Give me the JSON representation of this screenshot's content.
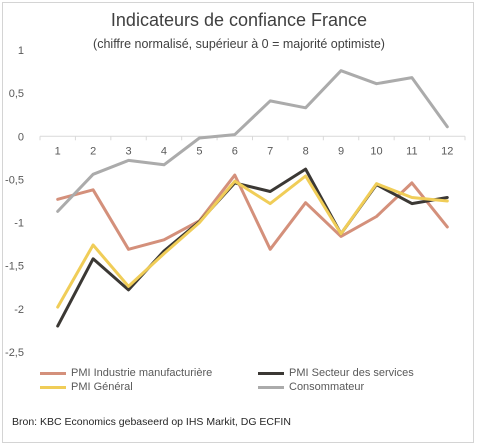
{
  "chart_data": {
    "type": "line",
    "title": "Indicateurs de confiance France",
    "subtitle": "(chiffre normalisé, supérieur à 0 = majorité optimiste)",
    "x": [
      1,
      2,
      3,
      4,
      5,
      6,
      7,
      8,
      9,
      10,
      11,
      12
    ],
    "ylim": [
      -2.5,
      1
    ],
    "yticks": [
      1,
      0.5,
      0,
      -0.5,
      -1,
      -1.5,
      -2,
      -2.5
    ],
    "ytick_labels": [
      "1",
      "0,5",
      "0",
      "-0,5",
      "-1",
      "-1,5",
      "-2",
      "-2,5"
    ],
    "grid": false,
    "legend_position": "bottom",
    "series": [
      {
        "name": "PMI Industrie manufacturière",
        "color": "#d4907b",
        "values": [
          -0.73,
          -0.62,
          -1.31,
          -1.2,
          -0.98,
          -0.45,
          -1.31,
          -0.77,
          -1.16,
          -0.93,
          -0.54,
          -1.05
        ]
      },
      {
        "name": "PMI Secteur des services",
        "color": "#3b3834",
        "values": [
          -2.2,
          -1.42,
          -1.78,
          -1.33,
          -0.99,
          -0.54,
          -0.64,
          -0.38,
          -1.13,
          -0.56,
          -0.78,
          -0.71
        ]
      },
      {
        "name": "PMI Général",
        "color": "#f0cd58",
        "values": [
          -1.98,
          -1.26,
          -1.74,
          -1.36,
          -1.0,
          -0.52,
          -0.78,
          -0.46,
          -1.13,
          -0.55,
          -0.71,
          -0.75
        ]
      },
      {
        "name": "Consommateur",
        "color": "#ababab",
        "values": [
          -0.87,
          -0.44,
          -0.28,
          -0.33,
          -0.02,
          0.02,
          0.41,
          0.33,
          0.76,
          0.61,
          0.68,
          0.11
        ]
      }
    ],
    "source": "Bron: KBC Economics gebaseerd op IHS Markit, DG ECFIN"
  }
}
